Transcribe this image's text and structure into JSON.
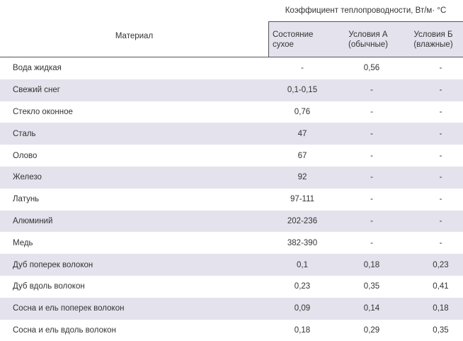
{
  "header": {
    "coefficient_title": "Коэффициент теплопроводности,  Вт/м· °С",
    "material_label": "Материал",
    "col_dry_line1": "Состояние",
    "col_dry_line2": "сухое",
    "col_a_line1": "Условия А",
    "col_a_line2": "(обычные)",
    "col_b_line1": "Условия Б",
    "col_b_line2": "(влажные)"
  },
  "rows": [
    {
      "name": "Вода жидкая",
      "dry": "-",
      "a": "0,56",
      "b": "-"
    },
    {
      "name": "Свежий снег",
      "dry": "0,1-0,15",
      "a": "-",
      "b": "-"
    },
    {
      "name": "Стекло оконное",
      "dry": "0,76",
      "a": "-",
      "b": "-"
    },
    {
      "name": "Сталь",
      "dry": "47",
      "a": "-",
      "b": "-"
    },
    {
      "name": "Олово",
      "dry": "67",
      "a": "-",
      "b": "-"
    },
    {
      "name": "Железо",
      "dry": "92",
      "a": "-",
      "b": "-"
    },
    {
      "name": "Латунь",
      "dry": "97-111",
      "a": "-",
      "b": "-"
    },
    {
      "name": "Алюминий",
      "dry": "202-236",
      "a": "-",
      "b": "-"
    },
    {
      "name": "Медь",
      "dry": "382-390",
      "a": "-",
      "b": "-"
    },
    {
      "name": "Дуб поперек волокон",
      "dry": "0,1",
      "a": "0,18",
      "b": "0,23"
    },
    {
      "name": "Дуб вдоль волокон",
      "dry": "0,23",
      "a": "0,35",
      "b": "0,41"
    },
    {
      "name": "Сосна и ель поперек волокон",
      "dry": "0,09",
      "a": "0,14",
      "b": "0,18"
    },
    {
      "name": "Сосна и ель вдоль волокон",
      "dry": "0,18",
      "a": "0,29",
      "b": "0,35"
    }
  ],
  "colors": {
    "shade": "#e4e2ec",
    "text": "#333333",
    "rule": "#555555"
  }
}
